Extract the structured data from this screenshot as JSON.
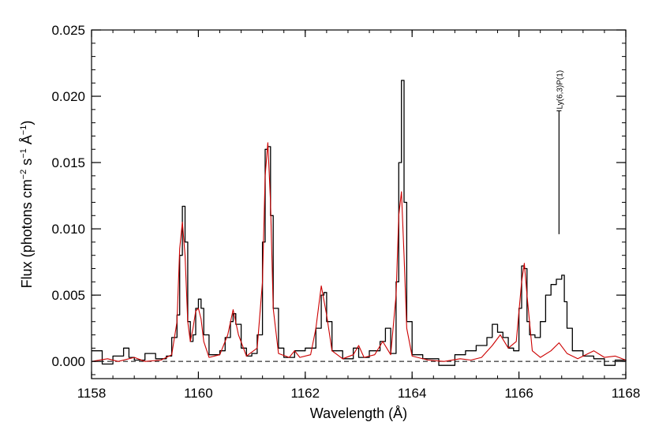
{
  "chart_data": {
    "type": "line",
    "title": "",
    "xlabel": "Wavelength (Å)",
    "ylabel": {
      "text": "Flux (photons cm",
      "exp1": "−2",
      "mid1": " s",
      "exp2": "−1",
      "mid2": " Å",
      "exp3": "−1",
      "end": ")"
    },
    "xlim": [
      1158,
      1168
    ],
    "ylim": [
      -0.0013,
      0.025
    ],
    "xticks": [
      1158,
      1160,
      1162,
      1164,
      1166,
      1168
    ],
    "xtick_labels": [
      "1158",
      "1160",
      "1162",
      "1164",
      "1166",
      "1168"
    ],
    "yticks": [
      0.0,
      0.005,
      0.01,
      0.015,
      0.02,
      0.025
    ],
    "ytick_labels": [
      "0.000",
      "0.005",
      "0.010",
      "0.015",
      "0.020",
      "0.025"
    ],
    "grid": false,
    "legend": "none",
    "zero_line": {
      "y": 0.0,
      "style": "dashed",
      "color": "#000000"
    },
    "series": [
      {
        "style": "histogram-step",
        "color": "#000000",
        "x": [
          1158.0,
          1158.2,
          1158.4,
          1158.6,
          1158.7,
          1158.8,
          1159.0,
          1159.2,
          1159.4,
          1159.5,
          1159.6,
          1159.65,
          1159.7,
          1159.75,
          1159.8,
          1159.85,
          1159.9,
          1159.95,
          1160.0,
          1160.05,
          1160.1,
          1160.2,
          1160.4,
          1160.5,
          1160.6,
          1160.65,
          1160.7,
          1160.8,
          1160.9,
          1161.0,
          1161.1,
          1161.2,
          1161.25,
          1161.3,
          1161.35,
          1161.4,
          1161.5,
          1161.6,
          1161.8,
          1162.0,
          1162.2,
          1162.3,
          1162.35,
          1162.4,
          1162.5,
          1162.7,
          1162.9,
          1163.0,
          1163.2,
          1163.4,
          1163.5,
          1163.6,
          1163.7,
          1163.75,
          1163.8,
          1163.85,
          1163.9,
          1164.0,
          1164.2,
          1164.5,
          1164.8,
          1165.0,
          1165.2,
          1165.4,
          1165.5,
          1165.6,
          1165.7,
          1165.8,
          1165.9,
          1166.0,
          1166.05,
          1166.1,
          1166.15,
          1166.2,
          1166.3,
          1166.4,
          1166.5,
          1166.6,
          1166.7,
          1166.8,
          1166.85,
          1166.9,
          1167.0,
          1167.2,
          1167.4,
          1167.6,
          1167.8,
          1168.0
        ],
        "y": [
          0.0008,
          -0.0002,
          0.0004,
          0.001,
          0.0003,
          0.0001,
          0.0006,
          0.0002,
          0.0004,
          0.0018,
          0.0035,
          0.008,
          0.0117,
          0.009,
          0.003,
          0.0015,
          0.002,
          0.004,
          0.0047,
          0.004,
          0.002,
          0.0005,
          0.0008,
          0.0018,
          0.003,
          0.0036,
          0.0028,
          0.001,
          0.0004,
          0.0006,
          0.002,
          0.009,
          0.016,
          0.0162,
          0.011,
          0.004,
          0.001,
          0.0003,
          0.0008,
          0.001,
          0.0025,
          0.005,
          0.0052,
          0.003,
          0.0008,
          0.0002,
          0.001,
          0.0003,
          0.0008,
          0.0015,
          0.0025,
          0.0006,
          0.006,
          0.015,
          0.0212,
          0.012,
          0.003,
          0.0005,
          0.0002,
          -0.0003,
          0.0005,
          0.0008,
          0.0012,
          0.0018,
          0.0028,
          0.0022,
          0.0018,
          0.001,
          0.0008,
          0.004,
          0.0072,
          0.007,
          0.003,
          0.002,
          0.0018,
          0.003,
          0.005,
          0.0058,
          0.0062,
          0.0065,
          0.0045,
          0.0025,
          0.0008,
          0.0004,
          0.0002,
          -0.0003,
          0.0001,
          0.0
        ]
      },
      {
        "style": "line",
        "color": "#cc0000",
        "x": [
          1158.0,
          1158.3,
          1158.5,
          1158.8,
          1159.0,
          1159.3,
          1159.5,
          1159.6,
          1159.65,
          1159.7,
          1159.75,
          1159.8,
          1159.85,
          1159.9,
          1159.95,
          1160.0,
          1160.05,
          1160.1,
          1160.2,
          1160.4,
          1160.55,
          1160.65,
          1160.75,
          1160.9,
          1161.1,
          1161.2,
          1161.25,
          1161.3,
          1161.35,
          1161.4,
          1161.5,
          1161.7,
          1161.8,
          1161.9,
          1162.1,
          1162.2,
          1162.3,
          1162.4,
          1162.5,
          1162.7,
          1162.9,
          1163.0,
          1163.1,
          1163.3,
          1163.45,
          1163.6,
          1163.7,
          1163.75,
          1163.8,
          1163.85,
          1163.9,
          1164.0,
          1164.3,
          1164.6,
          1164.9,
          1165.1,
          1165.3,
          1165.5,
          1165.65,
          1165.8,
          1165.95,
          1166.05,
          1166.1,
          1166.15,
          1166.25,
          1166.4,
          1166.6,
          1166.75,
          1166.9,
          1167.1,
          1167.4,
          1167.6,
          1167.8,
          1168.0
        ],
        "y": [
          0.0,
          0.0002,
          0.0,
          0.0003,
          0.0,
          0.0001,
          0.0005,
          0.003,
          0.0085,
          0.0105,
          0.008,
          0.003,
          0.0015,
          0.0025,
          0.0038,
          0.004,
          0.0032,
          0.0015,
          0.0003,
          0.0005,
          0.002,
          0.0039,
          0.002,
          0.0004,
          0.001,
          0.006,
          0.014,
          0.0165,
          0.012,
          0.004,
          0.0006,
          0.0003,
          0.0008,
          0.0003,
          0.0005,
          0.0025,
          0.0057,
          0.0035,
          0.0008,
          0.0002,
          0.0005,
          0.0012,
          0.0003,
          0.0005,
          0.0015,
          0.0005,
          0.005,
          0.011,
          0.0128,
          0.008,
          0.0025,
          0.0004,
          0.0001,
          0.0,
          0.0002,
          0.0001,
          0.0003,
          0.0012,
          0.002,
          0.001,
          0.0015,
          0.006,
          0.0074,
          0.005,
          0.0008,
          0.0003,
          0.0008,
          0.0014,
          0.0006,
          0.0002,
          0.0008,
          0.0003,
          0.0004,
          0.0001
        ]
      }
    ],
    "annotations": [
      {
        "text": "Ly(6,3)P(1)",
        "x": 1166.75,
        "y_from": 0.0096,
        "y_to": 0.0189
      }
    ]
  }
}
